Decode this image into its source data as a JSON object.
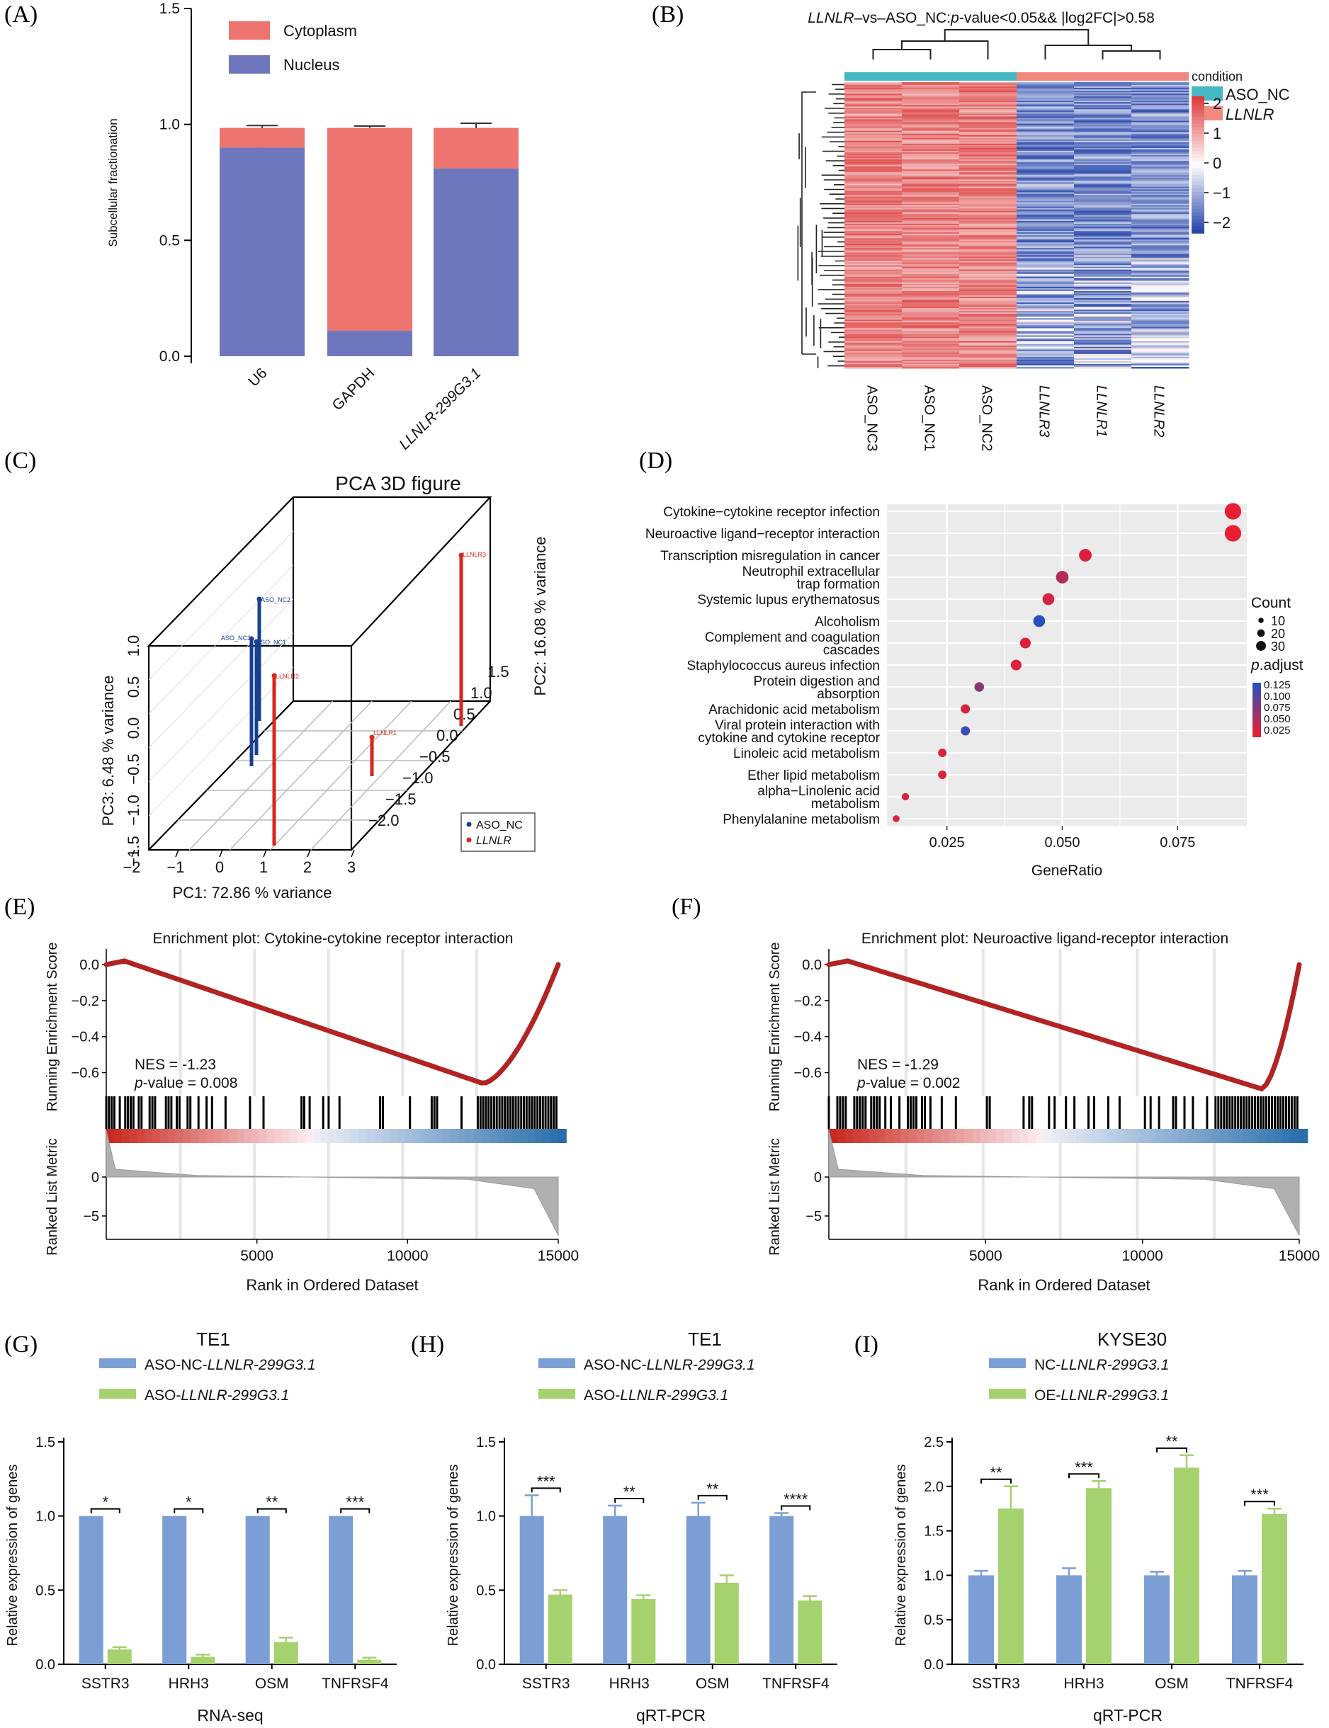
{
  "panel_letters": [
    "(A)",
    "(B)",
    "(C)",
    "(D)",
    "(E)",
    "(F)",
    "(G)",
    "(H)",
    "(I)"
  ],
  "chart_data": [
    {
      "panel": "A",
      "type": "bar",
      "stacked": true,
      "ylabel": "Subcellular fractionation",
      "ylim": [
        0,
        1.5
      ],
      "yticks": [
        "0.0",
        "0.5",
        "1.0",
        "1.5"
      ],
      "categories": [
        "U6",
        "GAPDH",
        "LLNLR-299G3.1"
      ],
      "series": [
        {
          "name": "Nucleus",
          "color": "#6e77bd",
          "values": [
            0.9,
            0.11,
            0.81
          ],
          "errors": [
            0.01,
            0.005,
            0.012
          ]
        },
        {
          "name": "Cytoplasm",
          "color": "#ee7470",
          "values": [
            0.085,
            0.875,
            0.175
          ],
          "errors": [
            0.01,
            0.008,
            0.02
          ]
        }
      ],
      "legend": [
        "Cytoplasm",
        "Nucleus"
      ]
    },
    {
      "panel": "B",
      "type": "heatmap",
      "title_italic": "LLNLR",
      "title_rest": "–vs–ASO_NC:",
      "title_p": "p",
      "title_tail": "-value<0.05&& |log2FC|>0.58",
      "columns": [
        "ASO_NC3",
        "ASO_NC1",
        "ASO_NC2",
        "LLNLR3",
        "LLNLR1",
        "LLNLR2"
      ],
      "condition_label": "condition",
      "legend": [
        {
          "name": "ASO_NC",
          "color": "#46b8c4"
        },
        {
          "name": "LLNLR",
          "color": "#f08a80"
        }
      ],
      "scale_ticks": [
        "2",
        "1",
        "0",
        "−1",
        "−2"
      ]
    },
    {
      "panel": "C",
      "type": "scatter",
      "title": "PCA 3D figure",
      "xlabel": "PC1: 72.86 % variance",
      "ylabel": "PC3: 6.48 % variance",
      "zlabel": "PC2: 16.08 % variance",
      "xticks": [
        "−2",
        "−1",
        "0",
        "1",
        "2",
        "3"
      ],
      "yticks": [
        "−1.5",
        "−1.0",
        "−0.5",
        "0.0",
        "0.5",
        "1.0"
      ],
      "zticks": [
        "−2.0",
        "−1.5",
        "−1.0",
        "−0.5",
        "0.0",
        "0.5",
        "1.0",
        "1.5"
      ],
      "points": [
        {
          "name": "ASO_NC2",
          "group": "ASO_NC"
        },
        {
          "name": "ASO_NC3",
          "group": "ASO_NC"
        },
        {
          "name": "ASO_NC1",
          "group": "ASO_NC"
        },
        {
          "name": "LLNLR2",
          "group": "LLNLR"
        },
        {
          "name": "LLNLR1",
          "group": "LLNLR"
        },
        {
          "name": "LLNLR3",
          "group": "LLNLR"
        }
      ],
      "legend": [
        {
          "name": "ASO_NC",
          "color": "#1a3f8f"
        },
        {
          "name": "LLNLR",
          "color": "#d7261e"
        }
      ]
    },
    {
      "panel": "D",
      "type": "scatter",
      "xlabel": "GeneRatio",
      "xticks": [
        "0.025",
        "0.050",
        "0.075"
      ],
      "xlim": [
        0.012,
        0.09
      ],
      "terms": [
        {
          "label": [
            "Cytokine−cytokine receptor infection"
          ],
          "ratio": 0.087,
          "count": 30,
          "padj": 0.012
        },
        {
          "label": [
            "Neuroactive ligand−receptor interaction"
          ],
          "ratio": 0.087,
          "count": 30,
          "padj": 0.012
        },
        {
          "label": [
            "Transcription misregulation in cancer"
          ],
          "ratio": 0.055,
          "count": 20,
          "padj": 0.02
        },
        {
          "label": [
            "Neutrophil extracellular",
            "trap formation"
          ],
          "ratio": 0.05,
          "count": 20,
          "padj": 0.045
        },
        {
          "label": [
            "Systemic lupus erythematosus"
          ],
          "ratio": 0.047,
          "count": 18,
          "padj": 0.025
        },
        {
          "label": [
            "Alcoholism"
          ],
          "ratio": 0.045,
          "count": 18,
          "padj": 0.13
        },
        {
          "label": [
            "Complement and coagulation",
            "cascades"
          ],
          "ratio": 0.042,
          "count": 15,
          "padj": 0.02
        },
        {
          "label": [
            "Staphylococcus aureus infection"
          ],
          "ratio": 0.04,
          "count": 15,
          "padj": 0.02
        },
        {
          "label": [
            "Protein digestion and",
            "absorption"
          ],
          "ratio": 0.032,
          "count": 12,
          "padj": 0.07
        },
        {
          "label": [
            "Arachidonic acid metabolism"
          ],
          "ratio": 0.029,
          "count": 11,
          "padj": 0.025
        },
        {
          "label": [
            "Viral protein interaction with",
            "cytokine and cytokine receptor"
          ],
          "ratio": 0.029,
          "count": 11,
          "padj": 0.12
        },
        {
          "label": [
            "Linoleic acid metabolism"
          ],
          "ratio": 0.024,
          "count": 9,
          "padj": 0.02
        },
        {
          "label": [
            "Ether lipid metabolism"
          ],
          "ratio": 0.024,
          "count": 9,
          "padj": 0.02
        },
        {
          "label": [
            "alpha−Linolenic acid",
            "metabolism"
          ],
          "ratio": 0.016,
          "count": 6,
          "padj": 0.02
        },
        {
          "label": [
            "Phenylalanine metabolism"
          ],
          "ratio": 0.014,
          "count": 5,
          "padj": 0.02
        }
      ],
      "count_legend_title": "Count",
      "count_legend": [
        "10",
        "20",
        "30"
      ],
      "padj_legend_title_italic": "p",
      "padj_legend_title_rest": ".adjust",
      "padj_legend": [
        "0.125",
        "0.100",
        "0.075",
        "0.050",
        "0.025"
      ]
    },
    {
      "panel": "E",
      "type": "line",
      "title": "Enrichment plot: Cytokine-cytokine receptor interaction",
      "ylabel": "Running Enrichment Score",
      "ylabel2": "Ranked List Metric",
      "xlabel": "Rank in Ordered Dataset",
      "yticks": [
        "0.0",
        "−0.2",
        "−0.4",
        "−0.6"
      ],
      "yticks2": [
        "0",
        "−5"
      ],
      "xticks": [
        "5000",
        "10000",
        "15000"
      ],
      "nes_text": "NES = -1.23",
      "p_italic": "p",
      "p_text": "-value = 0.008",
      "es_min_rank": 12500,
      "es_min": -0.66
    },
    {
      "panel": "F",
      "type": "line",
      "title": "Enrichment plot: Neuroactive ligand-receptor interaction",
      "ylabel": "Running Enrichment Score",
      "ylabel2": "Ranked List Metric",
      "xlabel": "Rank in Ordered Dataset",
      "yticks": [
        "0.0",
        "−0.2",
        "−0.4",
        "−0.6"
      ],
      "yticks2": [
        "0",
        "−5"
      ],
      "xticks": [
        "5000",
        "10000",
        "15000"
      ],
      "nes_text": "NES = -1.29",
      "p_italic": "p",
      "p_text": "-value = 0.002",
      "es_min_rank": 13800,
      "es_min": -0.69
    },
    {
      "panel": "G",
      "type": "bar",
      "title": "TE1",
      "xlabel": "RNA-seq",
      "ylabel": "Relative expression of genes",
      "ylim": [
        0,
        1.5
      ],
      "yticks": [
        "0.0",
        "0.5",
        "1.0",
        "1.5"
      ],
      "categories": [
        "SSTR3",
        "HRH3",
        "OSM",
        "TNFRSF4"
      ],
      "series": [
        {
          "name_plain": "ASO-NC-",
          "name_italic": "LLNLR-299G3.1",
          "color": "#7b9fd4",
          "values": [
            1.0,
            1.0,
            1.0,
            1.0
          ],
          "errors": [
            0,
            0,
            0,
            0
          ]
        },
        {
          "name_plain": "ASO-",
          "name_italic": "LLNLR-299G3.1",
          "color": "#a5d16f",
          "values": [
            0.1,
            0.05,
            0.15,
            0.03
          ],
          "errors": [
            0.015,
            0.015,
            0.03,
            0.015
          ]
        }
      ],
      "significance": [
        "*",
        "*",
        "**",
        "***"
      ]
    },
    {
      "panel": "H",
      "type": "bar",
      "title": "TE1",
      "xlabel": "qRT-PCR",
      "ylabel": "Relative expression of genes",
      "ylim": [
        0,
        1.5
      ],
      "yticks": [
        "0.0",
        "0.5",
        "1.0",
        "1.5"
      ],
      "categories": [
        "SSTR3",
        "HRH3",
        "OSM",
        "TNFRSF4"
      ],
      "series": [
        {
          "name_plain": "ASO-NC-",
          "name_italic": "LLNLR-299G3.1",
          "color": "#7b9fd4",
          "values": [
            1.0,
            1.0,
            1.0,
            1.0
          ],
          "errors": [
            0.14,
            0.07,
            0.09,
            0.02
          ]
        },
        {
          "name_plain": "ASO-",
          "name_italic": "LLNLR-299G3.1",
          "color": "#a5d16f",
          "values": [
            0.47,
            0.44,
            0.55,
            0.43
          ],
          "errors": [
            0.03,
            0.025,
            0.05,
            0.03
          ]
        }
      ],
      "significance": [
        "***",
        "**",
        "**",
        "****"
      ]
    },
    {
      "panel": "I",
      "type": "bar",
      "title": "KYSE30",
      "xlabel": "qRT-PCR",
      "ylabel": "Relative expression of genes",
      "ylim": [
        0,
        2.5
      ],
      "yticks": [
        "0.0",
        "0.5",
        "1.0",
        "1.5",
        "2.0",
        "2.5"
      ],
      "categories": [
        "SSTR3",
        "HRH3",
        "OSM",
        "TNFRSF4"
      ],
      "series": [
        {
          "name_plain": "NC-",
          "name_italic": "LLNLR-299G3.1",
          "color": "#7b9fd4",
          "values": [
            1.0,
            1.0,
            1.0,
            1.0
          ],
          "errors": [
            0.05,
            0.08,
            0.04,
            0.05
          ]
        },
        {
          "name_plain": "OE-",
          "name_italic": "LLNLR-299G3.1",
          "color": "#a5d16f",
          "values": [
            1.75,
            1.98,
            2.21,
            1.69
          ],
          "errors": [
            0.25,
            0.08,
            0.14,
            0.06
          ]
        }
      ],
      "significance": [
        "**",
        "***",
        "**",
        "***"
      ]
    }
  ]
}
